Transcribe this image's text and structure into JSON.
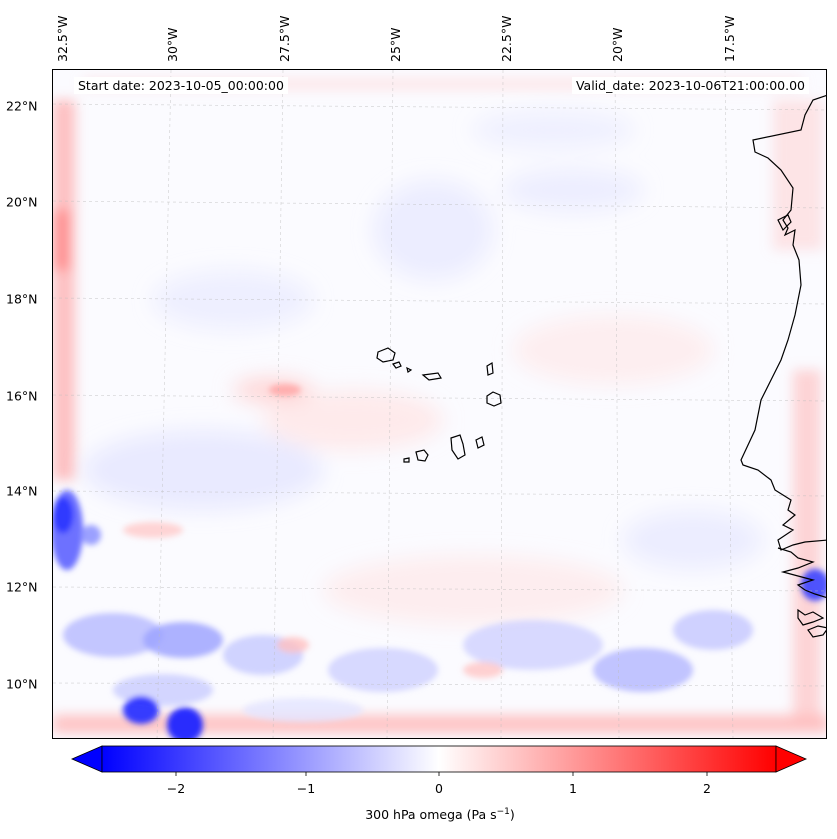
{
  "map": {
    "start_date": "Start date: 2023-10-05_00:00:00",
    "valid_date": "Valid_date: 2023-10-06T21:00:00.00",
    "lon_labels": [
      "32.5°W",
      "30°W",
      "27.5°W",
      "25°W",
      "22.5°W",
      "20°W",
      "17.5°W"
    ],
    "lat_labels": [
      "22°N",
      "20°N",
      "18°N",
      "16°N",
      "14°N",
      "12°N",
      "10°N"
    ],
    "grid_lines": true,
    "colors": {
      "negative": "#0000ff",
      "zero": "#ffffff",
      "positive": "#ff0000",
      "coastline": "#000000"
    }
  },
  "colorbar": {
    "label_prefix": "300 hPa omega (Pa s",
    "label_exp": "−1",
    "label_suffix": ")",
    "ticks": [
      "−2",
      "−1",
      "0",
      "1",
      "2"
    ],
    "range": [
      -2.6,
      2.6
    ],
    "extend": "both"
  }
}
